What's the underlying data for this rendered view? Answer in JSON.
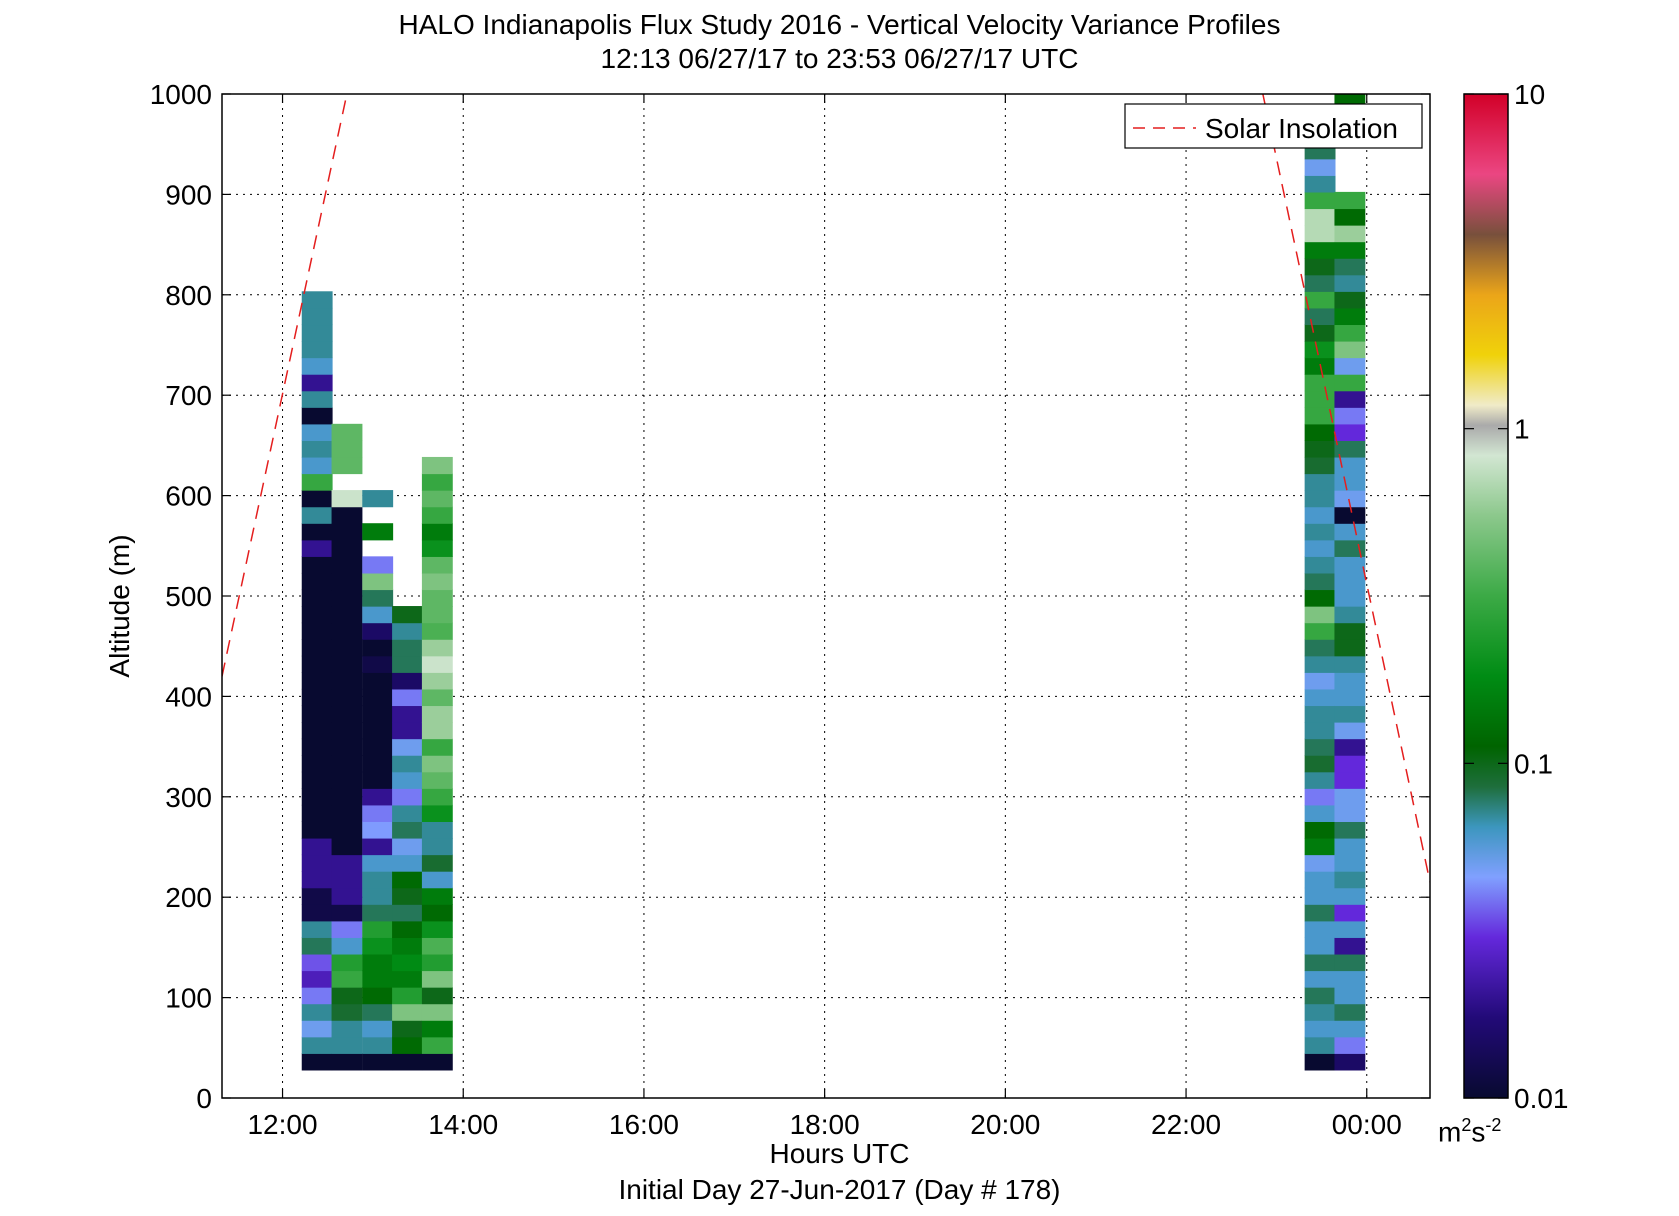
{
  "chart_data": {
    "type": "heatmap",
    "title": "HALO Indianapolis Flux Study 2016 - Vertical Velocity Variance Profiles",
    "subtitle": "12:13 06/27/17 to 23:53 06/27/17  UTC",
    "xlabel": "Hours UTC",
    "xlabel2": "Initial Day 27-Jun-2017 (Day # 178)",
    "ylabel": "Altitude (m)",
    "xlim": [
      11.33,
      24.7
    ],
    "ylim": [
      0,
      1000
    ],
    "x_ticks": [
      12,
      14,
      16,
      18,
      20,
      22,
      24
    ],
    "x_tick_labels": [
      "12:00",
      "14:00",
      "16:00",
      "18:00",
      "20:00",
      "22:00",
      "00:00"
    ],
    "y_ticks": [
      0,
      100,
      200,
      300,
      400,
      500,
      600,
      700,
      800,
      900,
      1000
    ],
    "y_tick_labels": [
      "0",
      "100",
      "200",
      "300",
      "400",
      "500",
      "600",
      "700",
      "800",
      "900",
      "1000"
    ],
    "grid": true,
    "legend": {
      "position": "top-right",
      "entries": [
        "Solar Insolation"
      ]
    },
    "colorbar": {
      "scale": "log",
      "range": [
        0.01,
        10
      ],
      "ticks": [
        0.01,
        0.1,
        1,
        10
      ],
      "tick_labels": [
        "0.01",
        "0.1",
        "1",
        "10"
      ],
      "units_base": "m",
      "units_sup1": "2",
      "units_mid": "s",
      "units_sup2": "-2"
    },
    "profile_times": [
      12.38,
      12.71,
      13.05,
      13.38,
      13.71,
      23.48,
      23.81
    ],
    "altitude_bins_start_m": 28,
    "altitude_bin_size_m": 16.5,
    "profiles": [
      [
        0.01,
        0.07,
        0.05,
        0.07,
        0.04,
        0.025,
        0.035,
        0.08,
        0.07,
        0.012,
        0.012,
        0.02,
        0.02,
        0.02,
        0.01,
        0.01,
        0.01,
        0.01,
        0.01,
        0.01,
        0.01,
        0.01,
        0.01,
        0.01,
        0.01,
        0.01,
        0.01,
        0.01,
        0.01,
        0.01,
        0.01,
        0.02,
        0.01,
        0.07,
        0.01,
        0.3,
        0.06,
        0.07,
        0.06,
        0.01,
        0.07,
        0.02,
        0.06,
        0.07,
        0.07,
        0.07,
        0.07
      ],
      [
        0.01,
        0.07,
        0.07,
        0.09,
        0.1,
        0.3,
        0.25,
        0.06,
        0.04,
        0.012,
        0.02,
        0.02,
        0.02,
        0.01,
        0.01,
        0.01,
        0.01,
        0.01,
        0.01,
        0.01,
        0.01,
        0.01,
        0.01,
        0.01,
        0.01,
        0.01,
        0.01,
        0.01,
        0.01,
        0.01,
        0.01,
        0.01,
        0.01,
        0.01,
        0.8,
        null,
        0.4,
        0.4,
        0.4
      ],
      [
        0.01,
        0.07,
        0.06,
        0.08,
        0.12,
        0.15,
        0.15,
        0.2,
        0.25,
        0.08,
        0.07,
        0.07,
        0.06,
        0.02,
        0.045,
        0.04,
        0.02,
        0.01,
        0.01,
        0.01,
        0.01,
        0.01,
        0.01,
        0.01,
        0.012,
        0.01,
        0.015,
        0.06,
        0.08,
        0.5,
        0.04,
        null,
        0.15,
        null,
        0.07
      ],
      [
        0.01,
        0.12,
        0.1,
        0.5,
        0.25,
        0.15,
        0.18,
        0.15,
        0.12,
        0.08,
        0.1,
        0.12,
        0.06,
        0.05,
        0.08,
        0.07,
        0.04,
        0.06,
        0.07,
        0.05,
        0.02,
        0.02,
        0.04,
        0.015,
        0.08,
        0.08,
        0.07,
        0.1
      ],
      [
        0.01,
        0.3,
        0.15,
        0.5,
        0.1,
        0.5,
        0.25,
        0.35,
        0.2,
        0.12,
        0.15,
        0.06,
        0.09,
        0.07,
        0.07,
        0.2,
        0.3,
        0.4,
        0.5,
        0.3,
        0.6,
        0.6,
        0.4,
        0.6,
        0.8,
        0.6,
        0.35,
        0.4,
        0.4,
        0.5,
        0.4,
        0.2,
        0.15,
        0.3,
        0.4,
        0.3,
        0.5
      ],
      [
        0.01,
        0.07,
        0.06,
        0.07,
        0.08,
        0.06,
        0.08,
        0.06,
        0.06,
        0.08,
        0.06,
        0.06,
        0.05,
        0.15,
        0.12,
        0.06,
        0.04,
        0.07,
        0.09,
        0.08,
        0.07,
        0.07,
        0.06,
        0.05,
        0.07,
        0.08,
        0.3,
        0.5,
        0.12,
        0.08,
        0.07,
        0.06,
        0.07,
        0.06,
        0.07,
        0.07,
        0.09,
        0.1,
        0.12,
        0.3,
        0.3,
        0.3,
        0.15,
        0.2,
        0.1,
        0.08,
        0.3,
        0.08,
        0.1,
        0.15,
        0.7,
        0.7,
        0.3,
        0.07,
        0.05,
        0.08,
        0.1,
        0.5,
        null,
        0.6,
        0.3
      ],
      [
        0.015,
        0.04,
        0.06,
        0.08,
        0.06,
        0.06,
        0.08,
        0.02,
        0.06,
        0.03,
        0.06,
        0.07,
        0.06,
        0.06,
        0.08,
        0.05,
        0.05,
        0.03,
        0.03,
        0.02,
        0.05,
        0.07,
        0.06,
        0.06,
        0.07,
        0.1,
        0.1,
        0.07,
        0.06,
        0.06,
        0.06,
        0.08,
        0.06,
        0.01,
        0.05,
        0.06,
        0.06,
        0.08,
        0.03,
        0.04,
        0.02,
        0.3,
        0.05,
        0.5,
        0.3,
        0.15,
        0.1,
        0.07,
        0.08,
        0.15,
        0.6,
        0.12,
        0.3,
        null,
        null,
        null,
        null,
        0.6,
        0.12,
        0.6
      ]
    ],
    "solar_insolation_line": {
      "style": "dashed",
      "color": "#e41e1e",
      "segments": [
        [
          [
            11.33,
            420
          ],
          [
            12.7,
            995
          ]
        ],
        [
          [
            22.85,
            1000
          ],
          [
            24.7,
            215
          ]
        ]
      ]
    }
  }
}
